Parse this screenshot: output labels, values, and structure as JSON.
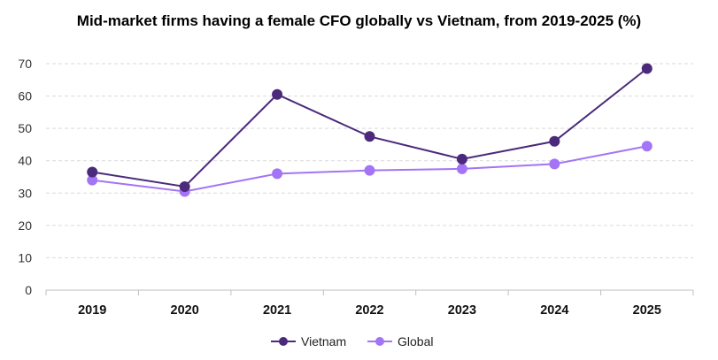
{
  "chart_data": {
    "type": "line",
    "title": "Mid-market firms having a female CFO globally vs Vietnam, from 2019-2025 (%)",
    "xlabel": "",
    "ylabel": "",
    "categories": [
      "2019",
      "2020",
      "2021",
      "2022",
      "2023",
      "2024",
      "2025"
    ],
    "ylim": [
      0,
      70
    ],
    "yticks": [
      0,
      10,
      20,
      30,
      40,
      50,
      60,
      70
    ],
    "grid": true,
    "legend_position": "bottom",
    "series": [
      {
        "name": "Vietnam",
        "color": "#4b2a7b",
        "values": [
          36.5,
          32,
          60.5,
          47.5,
          40.5,
          46,
          68.5
        ]
      },
      {
        "name": "Global",
        "color": "#a374f5",
        "values": [
          34,
          30.5,
          36,
          37,
          37.5,
          39,
          44.5
        ]
      }
    ]
  }
}
